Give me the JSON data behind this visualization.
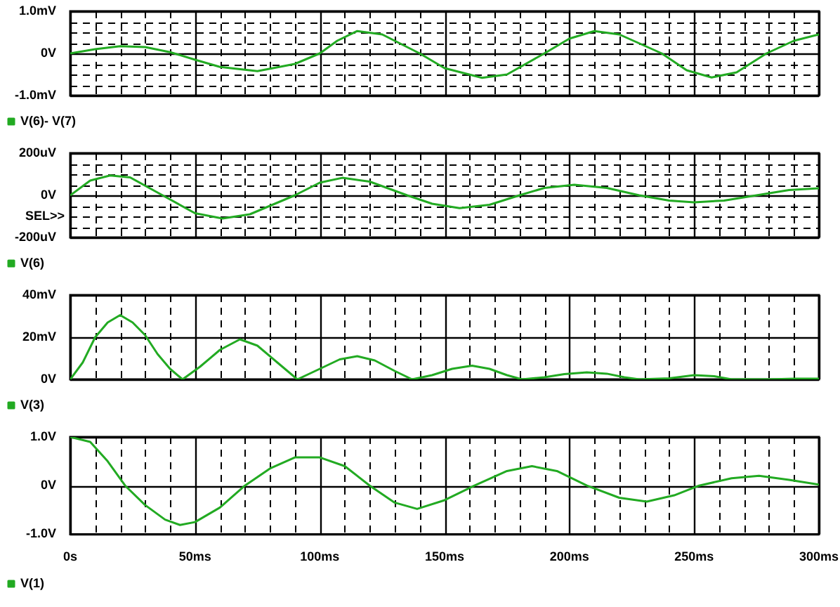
{
  "chart_data": [
    {
      "type": "line",
      "xlim": [
        0,
        300
      ],
      "ylim": [
        -1,
        1
      ],
      "tick_labels": "y",
      "grid": true,
      "legend": "bottom left",
      "marker": "none",
      "line_style": "solid",
      "xticks": [
        0,
        {
          "value": 10,
          "label": null
        },
        {
          "value": 20,
          "label": null
        },
        {
          "value": 30,
          "label": null
        },
        {
          "value": 40,
          "label": null
        },
        50,
        {
          "value": 60,
          "label": null
        },
        {
          "value": 70,
          "label": null
        },
        {
          "value": 80,
          "label": null
        },
        {
          "value": 90,
          "label": null
        },
        100,
        {
          "value": 110,
          "label": null
        },
        {
          "value": 120,
          "label": null
        },
        {
          "value": 130,
          "label": null
        },
        {
          "value": 140,
          "label": null
        },
        150,
        {
          "value": 160,
          "label": null
        },
        {
          "value": 170,
          "label": null
        },
        {
          "value": 180,
          "label": null
        },
        {
          "value": 190,
          "label": null
        },
        200,
        {
          "value": 210,
          "label": null
        },
        {
          "value": 220,
          "label": null
        },
        {
          "value": 230,
          "label": null
        },
        {
          "value": 240,
          "label": null
        },
        250,
        {
          "value": 260,
          "label": null
        },
        {
          "value": 270,
          "label": null
        },
        {
          "value": 280,
          "label": null
        },
        {
          "value": 290,
          "label": null
        },
        300
      ],
      "yticks": [
        {
          "value": -1,
          "label": "-1.0mV"
        },
        {
          "value": -0.75,
          "label": null
        },
        {
          "value": -0.5,
          "label": null
        },
        {
          "value": -0.25,
          "label": null
        },
        {
          "value": 0,
          "label": "0V"
        },
        {
          "value": 0.25,
          "label": null
        },
        {
          "value": 0.5,
          "label": null
        },
        {
          "value": 0.75,
          "label": null
        },
        {
          "value": 1,
          "label": "1.0mV"
        }
      ],
      "series": [
        {
          "name": "V(6)- V(7)",
          "color": "#22aa22",
          "x": [
            0,
            10,
            20,
            30,
            40,
            50,
            60,
            75,
            90,
            100,
            107,
            115,
            125,
            140,
            150,
            165,
            175,
            190,
            200,
            210,
            220,
            237,
            247,
            257,
            267,
            279,
            290,
            300
          ],
          "values": [
            0,
            0.1,
            0.17,
            0.15,
            0.03,
            -0.15,
            -0.32,
            -0.42,
            -0.25,
            0,
            0.3,
            0.53,
            0.45,
            0,
            -0.35,
            -0.58,
            -0.5,
            0,
            0.35,
            0.53,
            0.45,
            0,
            -0.4,
            -0.57,
            -0.45,
            0,
            0.3,
            0.45
          ]
        }
      ]
    },
    {
      "type": "line",
      "xlim": [
        0,
        300
      ],
      "ylim": [
        -200,
        200
      ],
      "tick_labels": "y",
      "grid": true,
      "legend": "bottom left",
      "marker": "none",
      "line_style": "solid",
      "annotations": [
        "SEL>>"
      ],
      "xticks": [
        0,
        {
          "value": 10,
          "label": null
        },
        {
          "value": 20,
          "label": null
        },
        {
          "value": 30,
          "label": null
        },
        {
          "value": 40,
          "label": null
        },
        50,
        {
          "value": 60,
          "label": null
        },
        {
          "value": 70,
          "label": null
        },
        {
          "value": 80,
          "label": null
        },
        {
          "value": 90,
          "label": null
        },
        100,
        {
          "value": 110,
          "label": null
        },
        {
          "value": 120,
          "label": null
        },
        {
          "value": 130,
          "label": null
        },
        {
          "value": 140,
          "label": null
        },
        150,
        {
          "value": 160,
          "label": null
        },
        {
          "value": 170,
          "label": null
        },
        {
          "value": 180,
          "label": null
        },
        {
          "value": 190,
          "label": null
        },
        200,
        {
          "value": 210,
          "label": null
        },
        {
          "value": 220,
          "label": null
        },
        {
          "value": 230,
          "label": null
        },
        {
          "value": 240,
          "label": null
        },
        250,
        {
          "value": 260,
          "label": null
        },
        {
          "value": 270,
          "label": null
        },
        {
          "value": 280,
          "label": null
        },
        {
          "value": 290,
          "label": null
        },
        300
      ],
      "yticks": [
        {
          "value": -200,
          "label": "-200uV"
        },
        {
          "value": -150,
          "label": null
        },
        {
          "value": -100,
          "label": null
        },
        {
          "value": -50,
          "label": null
        },
        {
          "value": 0,
          "label": "0V"
        },
        {
          "value": 50,
          "label": null
        },
        {
          "value": 100,
          "label": null
        },
        {
          "value": 150,
          "label": null
        },
        {
          "value": 200,
          "label": "200uV"
        }
      ],
      "series": [
        {
          "name": "V(6)",
          "color": "#22aa22",
          "x": [
            0,
            8,
            16,
            24,
            37,
            50,
            61,
            72,
            90,
            100,
            109,
            120,
            135,
            145,
            156,
            168,
            180,
            190,
            202,
            215,
            228,
            240,
            250,
            262,
            275,
            288,
            300
          ],
          "values": [
            0,
            70,
            94,
            85,
            0,
            -85,
            -110,
            -90,
            0,
            60,
            83,
            65,
            0,
            -40,
            -61,
            -45,
            0,
            35,
            50,
            35,
            0,
            -25,
            -33,
            -25,
            0,
            25,
            33
          ]
        }
      ]
    },
    {
      "type": "line",
      "xlim": [
        0,
        300
      ],
      "ylim": [
        0,
        40
      ],
      "tick_labels": "y",
      "grid": true,
      "legend": "bottom left",
      "marker": "none",
      "line_style": "solid",
      "xticks": [
        0,
        {
          "value": 10,
          "label": null
        },
        {
          "value": 20,
          "label": null
        },
        {
          "value": 30,
          "label": null
        },
        {
          "value": 40,
          "label": null
        },
        50,
        {
          "value": 60,
          "label": null
        },
        {
          "value": 70,
          "label": null
        },
        {
          "value": 80,
          "label": null
        },
        {
          "value": 90,
          "label": null
        },
        100,
        {
          "value": 110,
          "label": null
        },
        {
          "value": 120,
          "label": null
        },
        {
          "value": 130,
          "label": null
        },
        {
          "value": 140,
          "label": null
        },
        150,
        {
          "value": 160,
          "label": null
        },
        {
          "value": 170,
          "label": null
        },
        {
          "value": 180,
          "label": null
        },
        {
          "value": 190,
          "label": null
        },
        200,
        {
          "value": 210,
          "label": null
        },
        {
          "value": 220,
          "label": null
        },
        {
          "value": 230,
          "label": null
        },
        {
          "value": 240,
          "label": null
        },
        250,
        {
          "value": 260,
          "label": null
        },
        {
          "value": 270,
          "label": null
        },
        {
          "value": 280,
          "label": null
        },
        {
          "value": 290,
          "label": null
        },
        300
      ],
      "yticks": [
        {
          "value": 0,
          "label": "0V"
        },
        {
          "value": 20,
          "label": "20mV"
        },
        {
          "value": 40,
          "label": "40mV"
        }
      ],
      "series": [
        {
          "name": "V(3)",
          "color": "#22aa22",
          "x": [
            0,
            5,
            10,
            15,
            20,
            25,
            30,
            35,
            40,
            45,
            52,
            60,
            68,
            75,
            83,
            91,
            100,
            108,
            115,
            122,
            130,
            137,
            145,
            153,
            161,
            168,
            175,
            181,
            190,
            198,
            207,
            215,
            222,
            228,
            240,
            250,
            258,
            265,
            280,
            290,
            300
          ],
          "values": [
            0,
            8,
            20,
            27,
            30.5,
            27,
            21,
            12,
            5,
            0,
            6,
            14,
            19,
            16,
            8,
            0,
            5,
            9.5,
            11,
            9,
            4,
            0,
            2,
            5,
            6.5,
            5,
            2,
            0,
            1,
            2.5,
            3.3,
            2.7,
            1,
            0,
            0.5,
            2,
            1.5,
            0,
            0,
            0.3,
            0.3
          ]
        }
      ]
    },
    {
      "type": "line",
      "xlim": [
        0,
        300
      ],
      "ylim": [
        -1,
        1
      ],
      "grid": true,
      "legend": "bottom left",
      "marker": "none",
      "line_style": "solid",
      "xticks": [
        {
          "value": 0,
          "label": "0s"
        },
        {
          "value": 10,
          "label": null
        },
        {
          "value": 20,
          "label": null
        },
        {
          "value": 30,
          "label": null
        },
        {
          "value": 40,
          "label": null
        },
        {
          "value": 50,
          "label": "50ms"
        },
        {
          "value": 60,
          "label": null
        },
        {
          "value": 70,
          "label": null
        },
        {
          "value": 80,
          "label": null
        },
        {
          "value": 90,
          "label": null
        },
        {
          "value": 100,
          "label": "100ms"
        },
        {
          "value": 110,
          "label": null
        },
        {
          "value": 120,
          "label": null
        },
        {
          "value": 130,
          "label": null
        },
        {
          "value": 140,
          "label": null
        },
        {
          "value": 150,
          "label": "150ms"
        },
        {
          "value": 160,
          "label": null
        },
        {
          "value": 170,
          "label": null
        },
        {
          "value": 180,
          "label": null
        },
        {
          "value": 190,
          "label": null
        },
        {
          "value": 200,
          "label": "200ms"
        },
        {
          "value": 210,
          "label": null
        },
        {
          "value": 220,
          "label": null
        },
        {
          "value": 230,
          "label": null
        },
        {
          "value": 240,
          "label": null
        },
        {
          "value": 250,
          "label": "250ms"
        },
        {
          "value": 260,
          "label": null
        },
        {
          "value": 270,
          "label": null
        },
        {
          "value": 280,
          "label": null
        },
        {
          "value": 290,
          "label": null
        },
        {
          "value": 300,
          "label": "300ms"
        }
      ],
      "yticks": [
        {
          "value": -1,
          "label": "-1.0V"
        },
        {
          "value": 0,
          "label": "0V"
        },
        {
          "value": 1,
          "label": "1.0V"
        }
      ],
      "series": [
        {
          "name": "V(1)",
          "color": "#22aa22",
          "x": [
            0,
            8,
            15,
            22,
            30,
            38,
            44,
            50,
            60,
            70,
            80,
            90,
            100,
            110,
            120,
            130,
            139,
            150,
            162,
            175,
            185,
            195,
            207,
            220,
            231,
            242,
            252,
            265,
            276,
            288,
            300
          ],
          "values": [
            1,
            0.9,
            0.5,
            0,
            -0.4,
            -0.7,
            -0.81,
            -0.75,
            -0.45,
            0,
            0.35,
            0.58,
            0.58,
            0.4,
            0,
            -0.35,
            -0.48,
            -0.3,
            0,
            0.3,
            0.4,
            0.3,
            0,
            -0.25,
            -0.33,
            -0.2,
            0,
            0.15,
            0.2,
            0.12,
            0.02
          ]
        }
      ]
    }
  ]
}
